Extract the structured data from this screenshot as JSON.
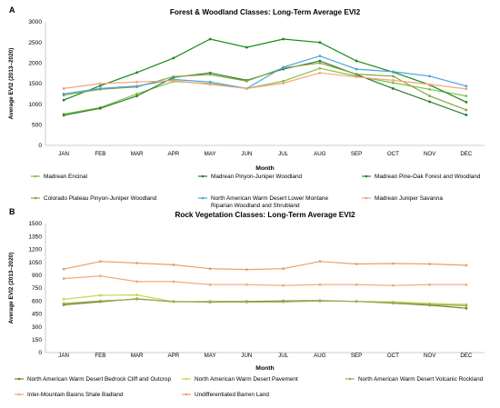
{
  "chart_data": [
    {
      "type": "line",
      "panel_label": "A",
      "title": "Forest & Woodland Classes: Long-Term Average EVI2",
      "xlabel": "Month",
      "ylabel": "Average EVI2 (2013–2020)",
      "ylim": [
        0,
        3000
      ],
      "yticks": [
        0,
        500,
        1000,
        1500,
        2000,
        2500,
        3000
      ],
      "grid": false,
      "legend_position": "bottom",
      "categories": [
        "JAN",
        "FEB",
        "MAR",
        "APR",
        "MAY",
        "JUN",
        "JUL",
        "AUG",
        "SEP",
        "OCT",
        "NOV",
        "DEC"
      ],
      "series": [
        {
          "name": "Madrean Encinal",
          "color": "#7dc243",
          "values": [
            760,
            920,
            1250,
            1550,
            1500,
            1380,
            1560,
            1870,
            1680,
            1520,
            1360,
            1200
          ]
        },
        {
          "name": "Madrean Pinyon-Juniper Woodland",
          "color": "#2e7d32",
          "values": [
            730,
            900,
            1200,
            1650,
            1760,
            1580,
            1850,
            2050,
            1720,
            1380,
            1060,
            740
          ]
        },
        {
          "name": "Madrean Pine-Oak Forest and Woodland",
          "color": "#1a8a1a",
          "values": [
            1100,
            1450,
            1770,
            2120,
            2580,
            2380,
            2580,
            2500,
            2050,
            1780,
            1470,
            1050
          ]
        },
        {
          "name": "Colorado Plateau Pinyon-Juniper Woodland",
          "color": "#8aa33c",
          "values": [
            1220,
            1360,
            1420,
            1670,
            1720,
            1560,
            1880,
            2000,
            1730,
            1680,
            1200,
            860
          ]
        },
        {
          "name": "North American Warm Desert Lower Montane Riparian Woodland and Shrubland",
          "color": "#4aa3df",
          "values": [
            1250,
            1380,
            1440,
            1600,
            1540,
            1380,
            1900,
            2170,
            1850,
            1790,
            1680,
            1440
          ]
        },
        {
          "name": "Madrean Juniper Savanna",
          "color": "#f4a57a",
          "values": [
            1380,
            1500,
            1540,
            1570,
            1480,
            1380,
            1510,
            1760,
            1660,
            1580,
            1480,
            1370
          ]
        }
      ]
    },
    {
      "type": "line",
      "panel_label": "B",
      "title": "Rock Vegetation Classes: Long-Term Average EVI2",
      "xlabel": "Month",
      "ylabel": "Average EVI2 (2013–2020)",
      "ylim": [
        0,
        1500
      ],
      "yticks": [
        0,
        150,
        300,
        450,
        600,
        750,
        900,
        1050,
        1200,
        1350,
        1500
      ],
      "grid": false,
      "legend_position": "bottom",
      "categories": [
        "JAN",
        "FEB",
        "MAR",
        "APR",
        "MAY",
        "JUN",
        "JUL",
        "AUG",
        "SEP",
        "OCT",
        "NOV",
        "DEC"
      ],
      "series": [
        {
          "name": "North American Warm Desert Bedrock Cliff and Outcrop",
          "color": "#6b8e23",
          "values": [
            555,
            590,
            625,
            590,
            595,
            595,
            600,
            605,
            595,
            575,
            550,
            515
          ]
        },
        {
          "name": "North American Warm Desert Pavement",
          "color": "#c3d94e",
          "values": [
            620,
            665,
            670,
            590,
            590,
            585,
            590,
            600,
            595,
            590,
            570,
            560
          ]
        },
        {
          "name": "North American Warm Desert Volcanic Rockland",
          "color": "#9aab5a",
          "values": [
            570,
            600,
            620,
            595,
            585,
            590,
            590,
            600,
            595,
            580,
            560,
            545
          ]
        },
        {
          "name": "Inter-Mountain Basins Shale Badland",
          "color": "#f0a878",
          "values": [
            860,
            890,
            825,
            825,
            790,
            790,
            780,
            790,
            790,
            780,
            790,
            790
          ]
        },
        {
          "name": "Undifferentiated Barren Land",
          "color": "#e8a068",
          "values": [
            970,
            1060,
            1040,
            1020,
            975,
            965,
            975,
            1060,
            1030,
            1035,
            1030,
            1015
          ]
        }
      ]
    }
  ]
}
